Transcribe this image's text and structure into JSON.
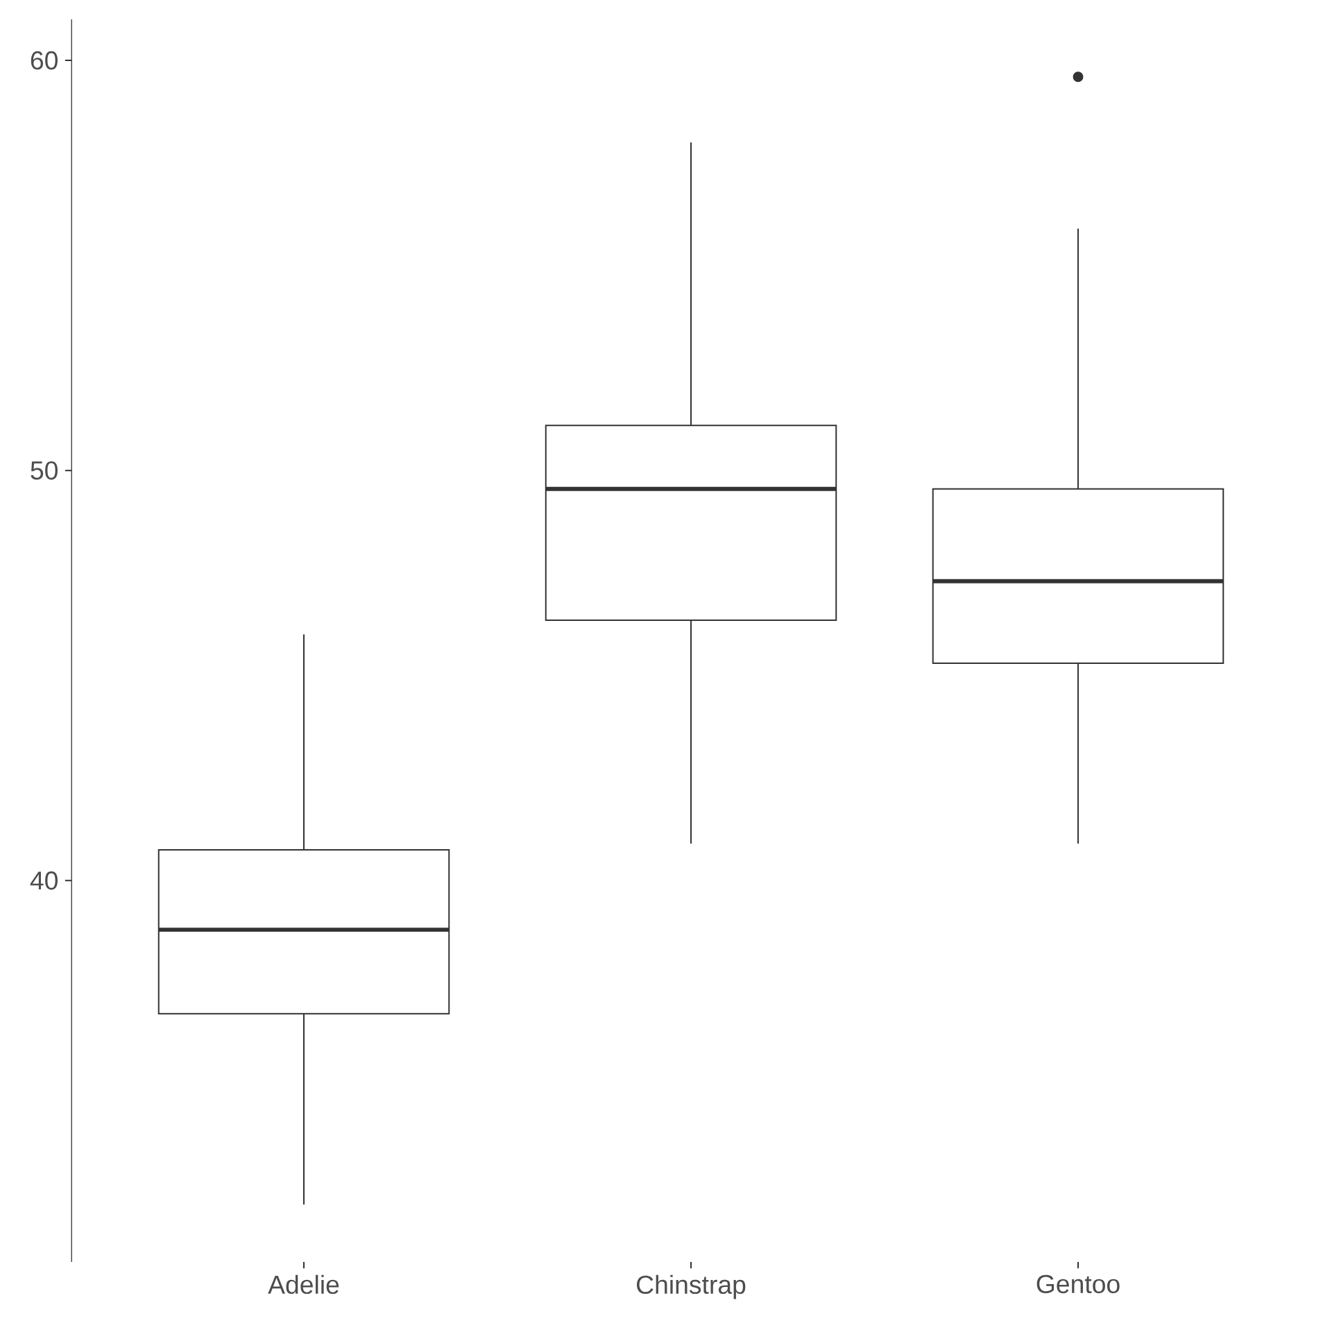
{
  "chart_data": {
    "type": "box",
    "categories": [
      "Adelie",
      "Chinstrap",
      "Gentoo"
    ],
    "boxes": [
      {
        "low": 32.1,
        "q1": 36.75,
        "median": 38.8,
        "q3": 40.75,
        "high": 46.0
      },
      {
        "low": 40.9,
        "q1": 46.35,
        "median": 49.55,
        "q3": 51.1,
        "high": 58.0
      },
      {
        "low": 40.9,
        "q1": 45.3,
        "median": 47.3,
        "q3": 49.55,
        "high": 55.9,
        "outliers": [
          59.6
        ]
      }
    ],
    "color": "#333333",
    "ylim": [
      30.7,
      61.0
    ],
    "yticks": [
      40,
      50,
      60
    ]
  }
}
